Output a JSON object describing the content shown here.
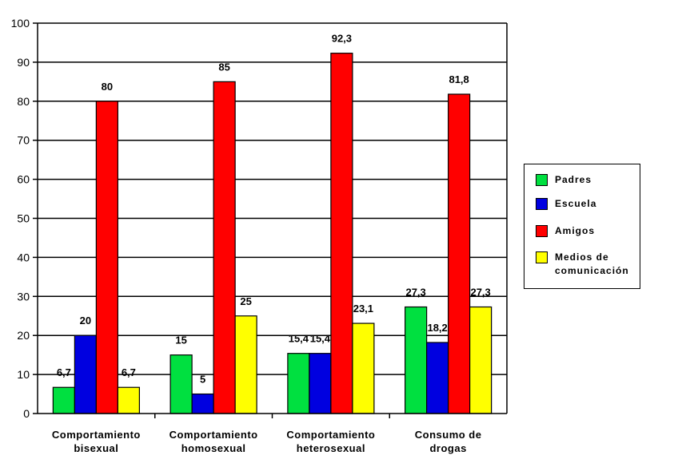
{
  "chart_data": {
    "type": "bar",
    "categories": [
      "Comportamiento\nbisexual",
      "Comportamiento\nhomosexual",
      "Comportamiento\nheterosexual",
      "Consumo de\ndrogas"
    ],
    "series": [
      {
        "name": "Padres",
        "color": "#00e040",
        "values": [
          6.7,
          15,
          15.4,
          27.3
        ],
        "labels": [
          "6,7",
          "15",
          "15,4",
          "27,3"
        ]
      },
      {
        "name": "Escuela",
        "color": "#0000e0",
        "values": [
          20,
          5,
          15.4,
          18.2
        ],
        "labels": [
          "20",
          "5",
          "15,4",
          "18,2"
        ]
      },
      {
        "name": "Amigos",
        "color": "#ff0000",
        "values": [
          80,
          85,
          92.3,
          81.8
        ],
        "labels": [
          "80",
          "85",
          "92,3",
          "81,8"
        ]
      },
      {
        "name": "Medios de\ncomunicación",
        "color": "#ffff00",
        "values": [
          6.7,
          25,
          23.1,
          27.3
        ],
        "labels": [
          "6,7",
          "25",
          "23,1",
          "27,3"
        ]
      }
    ],
    "yticks": [
      "0",
      "10",
      "20",
      "30",
      "40",
      "50",
      "60",
      "70",
      "80",
      "90",
      "100"
    ],
    "ylim": [
      0,
      100
    ],
    "grid": true,
    "legend": "right",
    "title": "",
    "xlabel": "",
    "ylabel": ""
  }
}
